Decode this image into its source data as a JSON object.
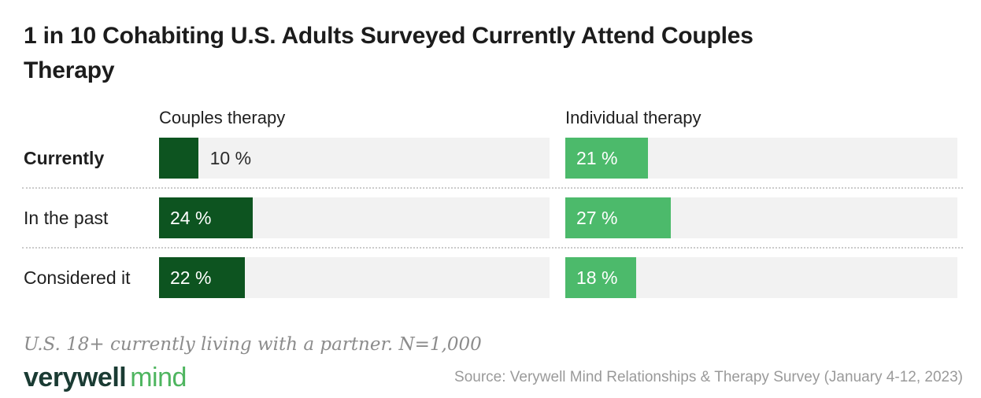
{
  "title": "1 in 10 Cohabiting U.S. Adults Surveyed Currently Attend Couples\nTherapy",
  "chart_data": {
    "type": "bar",
    "orientation": "horizontal",
    "categories": [
      "Currently",
      "In the past",
      "Considered it"
    ],
    "bold_category": "Currently",
    "series": [
      {
        "name": "Couples therapy",
        "color": "#0d5420",
        "values": [
          10,
          24,
          22
        ],
        "labels": [
          "10 %",
          "24 %",
          "22 %"
        ]
      },
      {
        "name": "Individual therapy",
        "color": "#4cba6b",
        "values": [
          21,
          27,
          18
        ],
        "labels": [
          "21 %",
          "27 %",
          "18 %"
        ]
      }
    ],
    "xlim": [
      0,
      100
    ],
    "track_color": "#f2f2f2",
    "value_label_inside_threshold": 15,
    "grid": false,
    "legend_position": "column-headers"
  },
  "note": "U.S. 18+ currently living with a partner. N=1,000",
  "footer": {
    "logo": {
      "primary": "verywell",
      "secondary": "mind",
      "primary_color": "#1a3b33",
      "secondary_color": "#4eb55f"
    },
    "source": "Source: Verywell Mind Relationships & Therapy Survey (January 4-12, 2023)"
  }
}
